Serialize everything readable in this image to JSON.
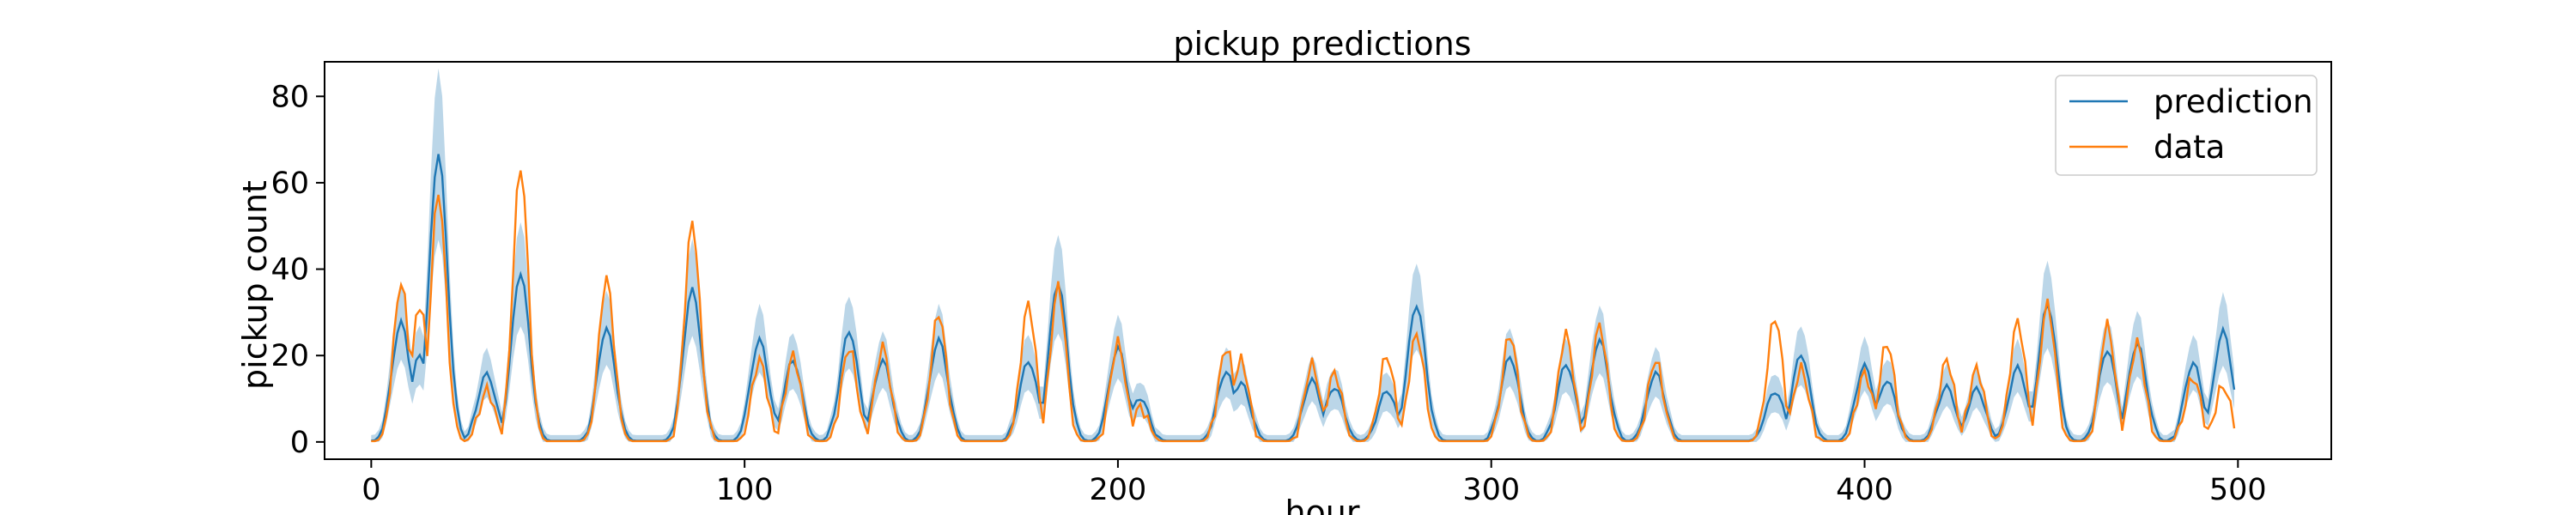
{
  "chart_data": {
    "type": "line",
    "title": "pickup predictions",
    "xlabel": "hour",
    "ylabel": "pickup count",
    "xlim": [
      -12.5,
      525
    ],
    "ylim": [
      -4,
      88
    ],
    "xticks": [
      0,
      100,
      200,
      300,
      400,
      500
    ],
    "yticks": [
      0,
      20,
      40,
      60,
      80
    ],
    "grid": false,
    "legend_position": "top-right",
    "colors": {
      "prediction": "#1f77b4",
      "data": "#ff7f0e",
      "band": "#1f77b4"
    },
    "peaks": [
      {
        "x": 8,
        "pred": 28,
        "data": 37
      },
      {
        "x": 13,
        "pred": 20,
        "data": 32
      },
      {
        "x": 18,
        "pred": 67,
        "data": 58
      },
      {
        "x": 31,
        "pred": 16,
        "data": 12
      },
      {
        "x": 40,
        "pred": 39,
        "data": 64
      },
      {
        "x": 63,
        "pred": 26,
        "data": 38
      },
      {
        "x": 86,
        "pred": 35,
        "data": 51
      },
      {
        "x": 104,
        "pred": 24,
        "data": 19
      },
      {
        "x": 113,
        "pred": 19,
        "data": 20
      },
      {
        "x": 128,
        "pred": 26,
        "data": 22
      },
      {
        "x": 137,
        "pred": 19,
        "data": 22
      },
      {
        "x": 152,
        "pred": 24,
        "data": 30
      },
      {
        "x": 176,
        "pred": 19,
        "data": 32
      },
      {
        "x": 184,
        "pred": 37,
        "data": 36
      },
      {
        "x": 200,
        "pred": 22,
        "data": 23
      },
      {
        "x": 206,
        "pred": 10,
        "data": 8
      },
      {
        "x": 229,
        "pred": 16,
        "data": 22
      },
      {
        "x": 233,
        "pred": 14,
        "data": 19
      },
      {
        "x": 252,
        "pred": 14,
        "data": 18
      },
      {
        "x": 258,
        "pred": 13,
        "data": 16
      },
      {
        "x": 272,
        "pred": 12,
        "data": 20
      },
      {
        "x": 280,
        "pred": 32,
        "data": 25
      },
      {
        "x": 305,
        "pred": 20,
        "data": 25
      },
      {
        "x": 320,
        "pred": 18,
        "data": 25
      },
      {
        "x": 329,
        "pred": 24,
        "data": 27
      },
      {
        "x": 344,
        "pred": 16,
        "data": 19
      },
      {
        "x": 376,
        "pred": 12,
        "data": 29
      },
      {
        "x": 383,
        "pred": 20,
        "data": 17
      },
      {
        "x": 400,
        "pred": 18,
        "data": 16
      },
      {
        "x": 406,
        "pred": 14,
        "data": 23
      },
      {
        "x": 422,
        "pred": 13,
        "data": 19
      },
      {
        "x": 430,
        "pred": 12,
        "data": 17
      },
      {
        "x": 441,
        "pred": 17,
        "data": 28
      },
      {
        "x": 449,
        "pred": 32,
        "data": 32
      },
      {
        "x": 465,
        "pred": 21,
        "data": 27
      },
      {
        "x": 473,
        "pred": 23,
        "data": 23
      },
      {
        "x": 488,
        "pred": 18,
        "data": 15
      },
      {
        "x": 496,
        "pred": 26,
        "data": 13
      }
    ],
    "series": [
      {
        "name": "prediction"
      },
      {
        "name": "data"
      }
    ]
  }
}
